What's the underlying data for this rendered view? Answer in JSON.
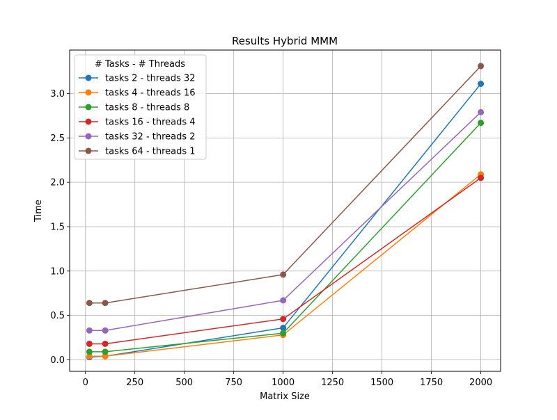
{
  "chart_data": {
    "type": "line",
    "title": "Results Hybrid MMM",
    "xlabel": "Matrix Size",
    "ylabel": "Time",
    "x": [
      20,
      100,
      1000,
      2000
    ],
    "xlim": [
      -80,
      2100
    ],
    "ylim": [
      -0.13,
      3.49
    ],
    "xticks": [
      0,
      250,
      500,
      750,
      1000,
      1250,
      1500,
      1750,
      2000
    ],
    "xtick_labels": [
      "0",
      "250",
      "500",
      "750",
      "1000",
      "1250",
      "1500",
      "1750",
      "2000"
    ],
    "yticks": [
      0.0,
      0.5,
      1.0,
      1.5,
      2.0,
      2.5,
      3.0
    ],
    "ytick_labels": [
      "0.0",
      "0.5",
      "1.0",
      "1.5",
      "2.0",
      "2.5",
      "3.0"
    ],
    "grid": true,
    "legend": {
      "title": "# Tasks - # Threads",
      "placement": "top-left"
    },
    "series": [
      {
        "name": "tasks 2 - threads 32",
        "color": "#1f77b4",
        "values": [
          0.03,
          0.04,
          0.36,
          3.11
        ]
      },
      {
        "name": "tasks 4 - threads 16",
        "color": "#ff7f0e",
        "values": [
          0.04,
          0.04,
          0.28,
          2.09
        ]
      },
      {
        "name": "tasks 8 - threads 8",
        "color": "#2ca02c",
        "values": [
          0.09,
          0.09,
          0.3,
          2.67
        ]
      },
      {
        "name": "tasks 16 - threads 4",
        "color": "#d62728",
        "values": [
          0.18,
          0.18,
          0.46,
          2.05
        ]
      },
      {
        "name": "tasks 32 - threads 2",
        "color": "#9467bd",
        "values": [
          0.33,
          0.33,
          0.67,
          2.79
        ]
      },
      {
        "name": "tasks 64 - threads 1",
        "color": "#8c564b",
        "values": [
          0.64,
          0.64,
          0.96,
          3.31
        ]
      }
    ]
  }
}
